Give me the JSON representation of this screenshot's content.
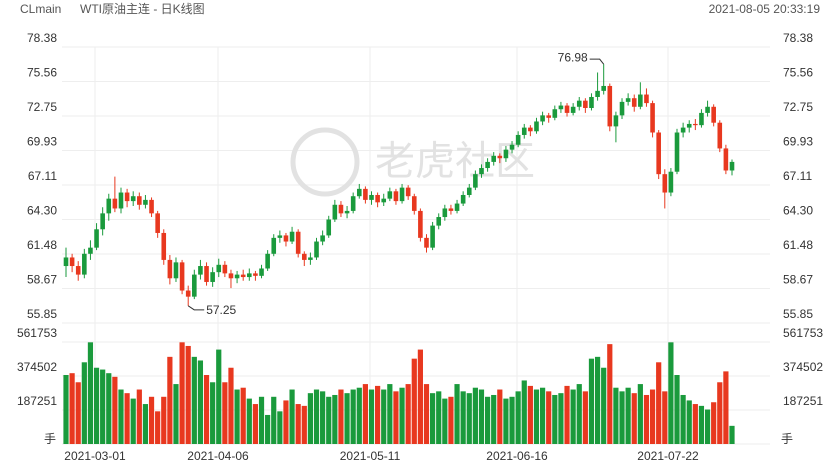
{
  "header": {
    "symbol": "CLmain",
    "name": "WTI原油主连 - 日K线图",
    "time": "2021-08-05 20:33:19"
  },
  "watermark": "老虎社区",
  "chart_data": {
    "type": "candlestick",
    "up_color": "#1a9a3c",
    "down_color": "#e8381f",
    "ylim": [
      55.85,
      78.38
    ],
    "yticks": [
      55.85,
      58.67,
      61.48,
      {
        "value": 64.3,
        "label": "64.30"
      },
      67.11,
      69.93,
      72.75,
      75.56,
      78.38
    ],
    "grid": true,
    "x_labels": [
      "2021-03-01",
      "2021-04-06",
      "2021-05-11",
      "2021-06-16",
      "2021-07-22"
    ],
    "annotations": [
      76.98,
      57.25
    ],
    "candles": [
      [
        60.5,
        62.0,
        59.6,
        61.2
      ],
      [
        61.2,
        61.5,
        60.0,
        60.5
      ],
      [
        60.5,
        60.9,
        59.3,
        59.8
      ],
      [
        59.8,
        61.9,
        59.5,
        61.5
      ],
      [
        61.5,
        62.6,
        61.0,
        62.0
      ],
      [
        62.0,
        64.0,
        61.8,
        63.5
      ],
      [
        63.5,
        65.3,
        63.0,
        64.8
      ],
      [
        64.8,
        66.4,
        64.2,
        66.0
      ],
      [
        66.0,
        67.8,
        64.9,
        65.2
      ],
      [
        65.2,
        66.9,
        64.8,
        66.5
      ],
      [
        66.5,
        66.8,
        65.3,
        65.8
      ],
      [
        65.8,
        66.6,
        65.4,
        66.2
      ],
      [
        66.2,
        66.5,
        65.1,
        65.5
      ],
      [
        65.5,
        66.3,
        65.2,
        65.9
      ],
      [
        65.9,
        66.1,
        64.5,
        64.8
      ],
      [
        64.8,
        65.0,
        62.8,
        63.2
      ],
      [
        63.2,
        63.5,
        60.6,
        61.0
      ],
      [
        61.0,
        61.4,
        59.0,
        59.5
      ],
      [
        59.5,
        61.2,
        59.2,
        60.8
      ],
      [
        60.8,
        61.0,
        58.2,
        58.5
      ],
      [
        58.5,
        58.9,
        57.25,
        58.0
      ],
      [
        58.0,
        60.2,
        57.8,
        59.8
      ],
      [
        59.8,
        61.0,
        59.4,
        60.5
      ],
      [
        60.5,
        60.8,
        58.9,
        59.2
      ],
      [
        59.2,
        60.4,
        58.8,
        60.0
      ],
      [
        60.0,
        61.1,
        59.6,
        60.6
      ],
      [
        60.6,
        60.9,
        59.6,
        59.9
      ],
      [
        59.9,
        60.2,
        58.7,
        59.5
      ],
      [
        59.5,
        60.1,
        59.1,
        59.8
      ],
      [
        59.8,
        60.2,
        59.3,
        59.6
      ],
      [
        59.6,
        60.3,
        59.3,
        59.9
      ],
      [
        59.9,
        60.1,
        59.3,
        59.7
      ],
      [
        59.7,
        60.6,
        59.5,
        60.3
      ],
      [
        60.3,
        61.8,
        60.1,
        61.5
      ],
      [
        61.5,
        63.1,
        61.3,
        62.8
      ],
      [
        62.8,
        63.4,
        62.4,
        63.0
      ],
      [
        63.0,
        63.2,
        62.1,
        62.5
      ],
      [
        62.5,
        63.7,
        62.3,
        63.3
      ],
      [
        63.3,
        63.5,
        61.2,
        61.5
      ],
      [
        61.5,
        61.7,
        60.5,
        61.0
      ],
      [
        61.0,
        61.6,
        60.6,
        61.2
      ],
      [
        61.2,
        62.8,
        61.0,
        62.5
      ],
      [
        62.5,
        63.4,
        62.2,
        63.0
      ],
      [
        63.0,
        64.6,
        62.8,
        64.3
      ],
      [
        64.3,
        65.9,
        64.1,
        65.5
      ],
      [
        65.5,
        65.8,
        64.5,
        64.8
      ],
      [
        64.8,
        65.4,
        64.4,
        65.0
      ],
      [
        65.0,
        66.5,
        64.8,
        66.2
      ],
      [
        66.2,
        67.2,
        66.0,
        66.8
      ],
      [
        66.8,
        67.0,
        65.6,
        65.9
      ],
      [
        65.9,
        66.6,
        65.5,
        66.3
      ],
      [
        66.3,
        66.5,
        65.3,
        65.7
      ],
      [
        65.7,
        66.4,
        65.4,
        66.0
      ],
      [
        66.0,
        66.9,
        65.8,
        66.6
      ],
      [
        66.6,
        66.8,
        65.5,
        65.8
      ],
      [
        65.8,
        67.2,
        65.6,
        66.9
      ],
      [
        66.9,
        67.1,
        65.9,
        66.2
      ],
      [
        66.2,
        66.4,
        64.7,
        65.0
      ],
      [
        65.0,
        65.2,
        62.5,
        62.8
      ],
      [
        62.8,
        63.1,
        61.6,
        62.0
      ],
      [
        62.0,
        64.1,
        61.8,
        63.8
      ],
      [
        63.8,
        64.8,
        63.5,
        64.5
      ],
      [
        64.5,
        65.5,
        64.2,
        65.2
      ],
      [
        65.2,
        65.5,
        64.7,
        65.0
      ],
      [
        65.0,
        65.9,
        64.8,
        65.6
      ],
      [
        65.6,
        66.6,
        65.4,
        66.3
      ],
      [
        66.3,
        67.2,
        66.1,
        66.9
      ],
      [
        66.9,
        68.3,
        66.7,
        68.0
      ],
      [
        68.0,
        68.8,
        67.7,
        68.5
      ],
      [
        68.5,
        69.3,
        68.2,
        69.0
      ],
      [
        69.0,
        69.8,
        68.7,
        69.5
      ],
      [
        69.5,
        69.7,
        68.9,
        69.3
      ],
      [
        69.3,
        70.3,
        69.0,
        70.0
      ],
      [
        70.0,
        70.7,
        69.7,
        70.4
      ],
      [
        70.4,
        71.5,
        70.2,
        71.2
      ],
      [
        71.2,
        72.1,
        70.9,
        71.8
      ],
      [
        71.8,
        72.0,
        71.1,
        71.5
      ],
      [
        71.5,
        72.6,
        71.3,
        72.3
      ],
      [
        72.3,
        73.1,
        72.0,
        72.8
      ],
      [
        72.8,
        73.0,
        72.2,
        72.6
      ],
      [
        72.6,
        73.6,
        72.4,
        73.3
      ],
      [
        73.3,
        73.9,
        73.0,
        73.6
      ],
      [
        73.6,
        73.8,
        72.7,
        73.0
      ],
      [
        73.0,
        73.8,
        72.8,
        73.5
      ],
      [
        73.5,
        74.3,
        73.2,
        74.0
      ],
      [
        74.0,
        74.2,
        73.0,
        73.4
      ],
      [
        73.4,
        74.6,
        73.2,
        74.3
      ],
      [
        74.3,
        76.3,
        74.0,
        74.8
      ],
      [
        74.8,
        76.98,
        74.5,
        75.2
      ],
      [
        75.2,
        75.4,
        71.5,
        71.9
      ],
      [
        71.9,
        73.1,
        70.6,
        72.8
      ],
      [
        72.8,
        74.2,
        72.5,
        73.9
      ],
      [
        73.9,
        74.6,
        73.6,
        74.2
      ],
      [
        74.2,
        74.5,
        73.1,
        73.5
      ],
      [
        73.5,
        75.5,
        73.3,
        74.5
      ],
      [
        74.5,
        75.0,
        73.5,
        73.8
      ],
      [
        73.8,
        74.0,
        71.0,
        71.4
      ],
      [
        71.4,
        71.6,
        67.6,
        68.0
      ],
      [
        68.0,
        68.4,
        65.2,
        66.5
      ],
      [
        66.5,
        68.5,
        66.2,
        68.2
      ],
      [
        68.2,
        71.7,
        68.0,
        71.4
      ],
      [
        71.4,
        72.2,
        71.0,
        71.8
      ],
      [
        71.8,
        72.4,
        71.4,
        72.1
      ],
      [
        72.1,
        72.5,
        71.6,
        72.0
      ],
      [
        72.0,
        73.3,
        71.8,
        73.0
      ],
      [
        73.0,
        74.0,
        72.7,
        73.5
      ],
      [
        73.5,
        73.7,
        71.9,
        72.2
      ],
      [
        72.2,
        72.4,
        69.8,
        70.1
      ],
      [
        70.1,
        70.4,
        68.0,
        68.3
      ],
      [
        68.3,
        69.2,
        67.9,
        69.0
      ]
    ],
    "volume": {
      "unit": "手",
      "ylim": [
        0,
        583800
      ],
      "yticks": [
        187251,
        374502,
        561753
      ],
      "values": [
        380000,
        390000,
        340000,
        450000,
        560000,
        420000,
        410000,
        390000,
        370000,
        300000,
        280000,
        250000,
        300000,
        220000,
        260000,
        180000,
        260000,
        480000,
        330000,
        560000,
        540000,
        480000,
        460000,
        380000,
        340000,
        520000,
        340000,
        420000,
        300000,
        310000,
        250000,
        220000,
        260000,
        160000,
        260000,
        180000,
        240000,
        300000,
        220000,
        210000,
        280000,
        300000,
        290000,
        260000,
        270000,
        300000,
        280000,
        300000,
        310000,
        330000,
        300000,
        320000,
        300000,
        330000,
        290000,
        310000,
        330000,
        470000,
        520000,
        330000,
        280000,
        290000,
        250000,
        260000,
        330000,
        290000,
        280000,
        310000,
        300000,
        260000,
        270000,
        300000,
        250000,
        260000,
        290000,
        350000,
        320000,
        300000,
        310000,
        290000,
        270000,
        280000,
        320000,
        300000,
        330000,
        290000,
        470000,
        480000,
        420000,
        550000,
        310000,
        290000,
        310000,
        280000,
        330000,
        270000,
        300000,
        450000,
        290000,
        560000,
        380000,
        270000,
        240000,
        220000,
        210000,
        190000,
        230000,
        340000,
        400000,
        100000
      ]
    }
  }
}
